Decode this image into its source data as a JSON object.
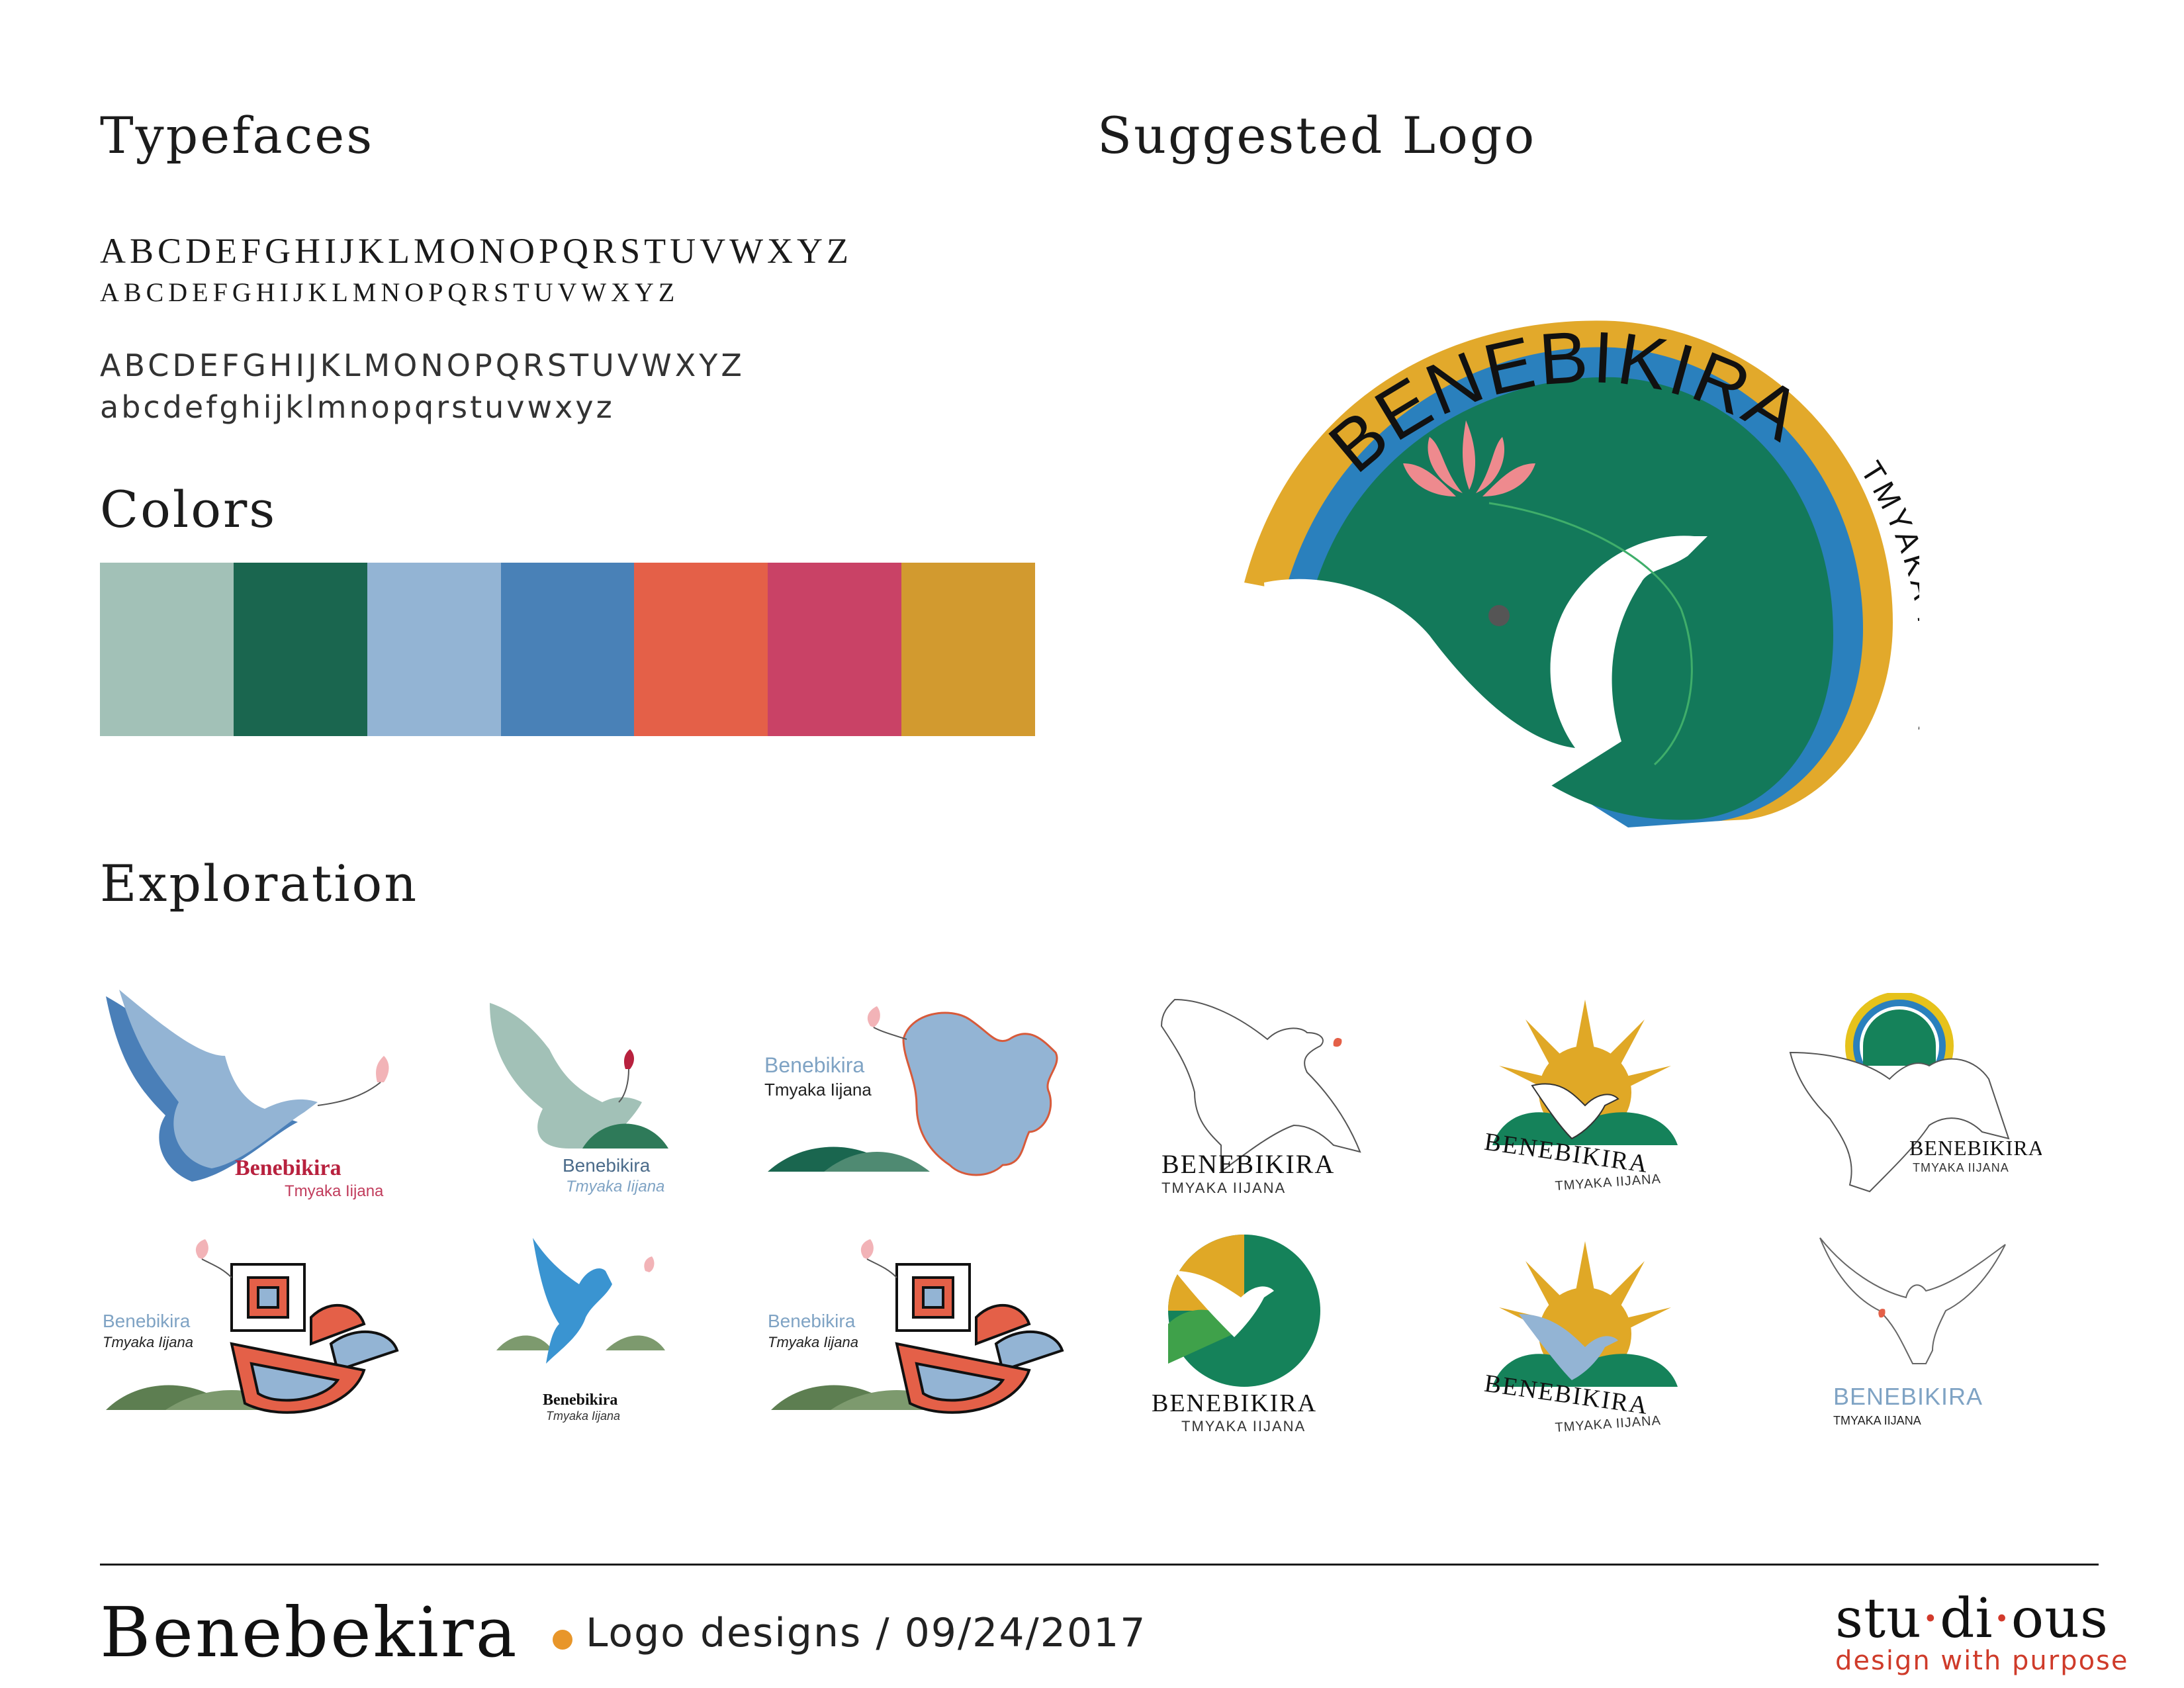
{
  "sections": {
    "typefaces": "Typefaces",
    "suggested_logo": "Suggested Logo",
    "colors": "Colors",
    "exploration": "Exploration"
  },
  "typefaces": {
    "serif_upper_large": "ABCDEFGHIJKLMONOPQRSTUVWXYZ",
    "serif_upper_small": "ABCDEFGHIJKLMNOPQRSTUVWXYZ",
    "sans_upper": "ABCDEFGHIJKLMONOPQRSTUVWXYZ",
    "sans_lower": "abcdefghijklmnopqrstuvwxyz"
  },
  "palette": [
    "#a2c1b7",
    "#1a664f",
    "#93b4d4",
    "#4981b7",
    "#e46048",
    "#c94266",
    "#d29a2f"
  ],
  "logo": {
    "name": "BENEBIKIRA",
    "sub": "TMYAKA IIJANA",
    "colors": {
      "gold": "#e2a92b",
      "blue": "#2a80bd",
      "green": "#13795a",
      "petal": "#ee8a8e"
    }
  },
  "exploration": {
    "v1": {
      "name": "Benebikira",
      "sub": "Tmyaka Iijana"
    },
    "v2": {
      "name": "Benebikira",
      "sub": "Tmyaka Iijana"
    },
    "v3": {
      "name": "Benebikira",
      "sub": "Tmyaka Iijana"
    },
    "v4": {
      "name": "BENEBIKIRA",
      "sub": "TMYAKA IIJANA"
    },
    "v5": {
      "name": "BENEBIKIRA",
      "sub": "TMYAKA IIJANA"
    },
    "v6": {
      "name": "BENEBIKIRA",
      "sub": "TMYAKA IIJANA"
    },
    "v7": {
      "name": "Benebikira",
      "sub": "Tmyaka Iijana"
    },
    "v8": {
      "name": "Benebikira",
      "sub": "Tmyaka Iijana"
    },
    "v9": {
      "name": "Benebikira",
      "sub": "Tmyaka Iijana"
    },
    "v10": {
      "name": "BENEBIKIRA",
      "sub": "TMYAKA IIJANA"
    },
    "v11": {
      "name": "BENEBIKIRA",
      "sub": "TMYAKA IIJANA"
    },
    "v12": {
      "name": "BENEBIKIRA",
      "sub": "TMYAKA IIJANA"
    }
  },
  "footer": {
    "project": "Benebekira",
    "meta": "Logo designs / 09/24/2017",
    "studio_parts": [
      "stu",
      "di",
      "ous"
    ],
    "studio_sep": "·",
    "tagline": "design with purpose",
    "dot_color": "#e8962a",
    "tagline_color": "#cf3b2a"
  }
}
